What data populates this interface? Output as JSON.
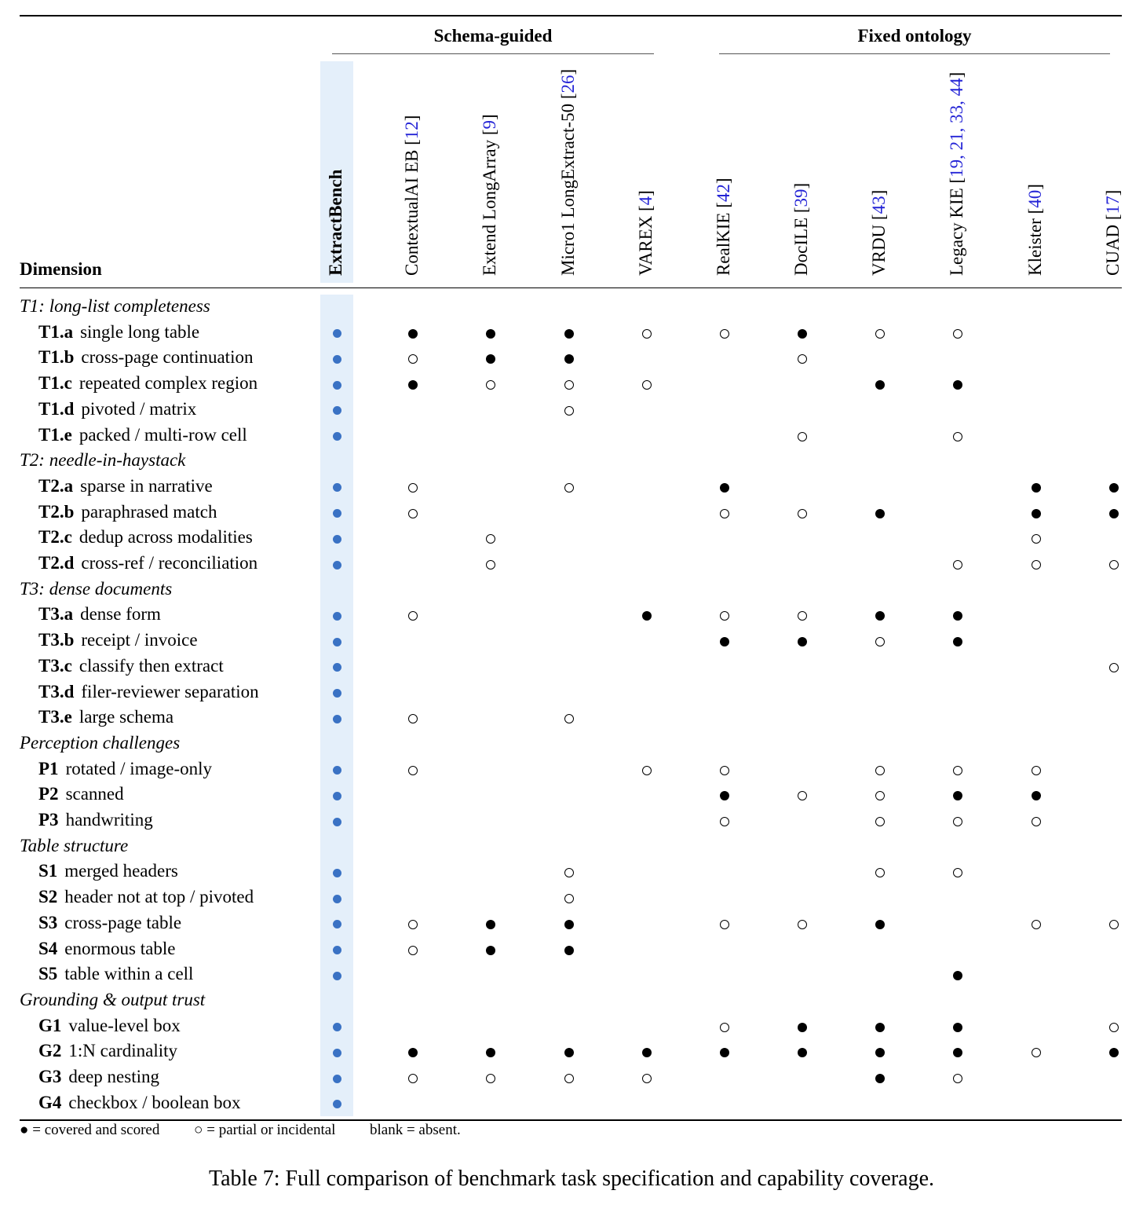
{
  "groups": [
    {
      "label": "Schema-guided"
    },
    {
      "label": "Fixed ontology"
    }
  ],
  "dimension_header": "Dimension",
  "columns": [
    {
      "name": "ExtractBench",
      "cite": ""
    },
    {
      "name": "ContextualAI EB [",
      "cite": "12",
      "suffix": "]"
    },
    {
      "name": "Extend LongArray [",
      "cite": "9",
      "suffix": "]"
    },
    {
      "name": "Micro1 LongExtract-50 [",
      "cite": "26",
      "suffix": "]"
    },
    {
      "name": "VAREX [",
      "cite": "4",
      "suffix": "]"
    },
    {
      "name": "RealKIE [",
      "cite": "42",
      "suffix": "]"
    },
    {
      "name": "DocILE [",
      "cite": "39",
      "suffix": "]"
    },
    {
      "name": "VRDU [",
      "cite": "43",
      "suffix": "]"
    },
    {
      "name": "Legacy KIE [",
      "cite": "19, 21, 33, 44",
      "suffix": "]"
    },
    {
      "name": "Kleister [",
      "cite": "40",
      "suffix": "]"
    },
    {
      "name": "CUAD [",
      "cite": "17",
      "suffix": "]"
    }
  ],
  "sections": [
    {
      "title": "T1: long-list completeness",
      "rows": [
        {
          "code": "T1.a",
          "label": "single long table",
          "marks": [
            "eb",
            "full",
            "full",
            "full",
            "partial",
            "partial",
            "full",
            "partial",
            "partial",
            "",
            ""
          ]
        },
        {
          "code": "T1.b",
          "label": "cross-page continuation",
          "marks": [
            "eb",
            "partial",
            "full",
            "full",
            "",
            "",
            "partial",
            "",
            "",
            "",
            ""
          ]
        },
        {
          "code": "T1.c",
          "label": "repeated complex region",
          "marks": [
            "eb",
            "full",
            "partial",
            "partial",
            "partial",
            "",
            "",
            "full",
            "full",
            "",
            ""
          ]
        },
        {
          "code": "T1.d",
          "label": "pivoted / matrix",
          "marks": [
            "eb",
            "",
            "",
            "partial",
            "",
            "",
            "",
            "",
            "",
            "",
            ""
          ]
        },
        {
          "code": "T1.e",
          "label": "packed / multi-row cell",
          "marks": [
            "eb",
            "",
            "",
            "",
            "",
            "",
            "partial",
            "",
            "partial",
            "",
            ""
          ]
        }
      ]
    },
    {
      "title": "T2: needle-in-haystack",
      "rows": [
        {
          "code": "T2.a",
          "label": "sparse in narrative",
          "marks": [
            "eb",
            "partial",
            "",
            "partial",
            "",
            "full",
            "",
            "",
            "",
            "full",
            "full"
          ]
        },
        {
          "code": "T2.b",
          "label": "paraphrased match",
          "marks": [
            "eb",
            "partial",
            "",
            "",
            "",
            "partial",
            "partial",
            "full",
            "",
            "full",
            "full"
          ]
        },
        {
          "code": "T2.c",
          "label": "dedup across modalities",
          "marks": [
            "eb",
            "",
            "partial",
            "",
            "",
            "",
            "",
            "",
            "",
            "partial",
            ""
          ]
        },
        {
          "code": "T2.d",
          "label": "cross-ref / reconciliation",
          "marks": [
            "eb",
            "",
            "partial",
            "",
            "",
            "",
            "",
            "",
            "partial",
            "partial",
            "partial"
          ]
        }
      ]
    },
    {
      "title": "T3: dense documents",
      "rows": [
        {
          "code": "T3.a",
          "label": "dense form",
          "marks": [
            "eb",
            "partial",
            "",
            "",
            "full",
            "partial",
            "partial",
            "full",
            "full",
            "",
            ""
          ]
        },
        {
          "code": "T3.b",
          "label": "receipt / invoice",
          "marks": [
            "eb",
            "",
            "",
            "",
            "",
            "full",
            "full",
            "partial",
            "full",
            "",
            ""
          ]
        },
        {
          "code": "T3.c",
          "label": "classify then extract",
          "marks": [
            "eb",
            "",
            "",
            "",
            "",
            "",
            "",
            "",
            "",
            "",
            "partial"
          ]
        },
        {
          "code": "T3.d",
          "label": "filer-reviewer separation",
          "marks": [
            "eb",
            "",
            "",
            "",
            "",
            "",
            "",
            "",
            "",
            "",
            ""
          ]
        },
        {
          "code": "T3.e",
          "label": "large schema",
          "marks": [
            "eb",
            "partial",
            "",
            "partial",
            "",
            "",
            "",
            "",
            "",
            "",
            ""
          ]
        }
      ]
    },
    {
      "title": "Perception challenges",
      "rows": [
        {
          "code": "P1",
          "label": "rotated / image-only",
          "marks": [
            "eb",
            "partial",
            "",
            "",
            "partial",
            "partial",
            "",
            "partial",
            "partial",
            "partial",
            ""
          ]
        },
        {
          "code": "P2",
          "label": "scanned",
          "marks": [
            "eb",
            "",
            "",
            "",
            "",
            "full",
            "partial",
            "partial",
            "full",
            "full",
            ""
          ]
        },
        {
          "code": "P3",
          "label": "handwriting",
          "marks": [
            "eb",
            "",
            "",
            "",
            "",
            "partial",
            "",
            "partial",
            "partial",
            "partial",
            ""
          ]
        }
      ]
    },
    {
      "title": "Table structure",
      "rows": [
        {
          "code": "S1",
          "label": "merged headers",
          "marks": [
            "eb",
            "",
            "",
            "partial",
            "",
            "",
            "",
            "partial",
            "partial",
            "",
            ""
          ]
        },
        {
          "code": "S2",
          "label": "header not at top / pivoted",
          "marks": [
            "eb",
            "",
            "",
            "partial",
            "",
            "",
            "",
            "",
            "",
            "",
            ""
          ]
        },
        {
          "code": "S3",
          "label": "cross-page table",
          "marks": [
            "eb",
            "partial",
            "full",
            "full",
            "",
            "partial",
            "partial",
            "full",
            "",
            "partial",
            "partial"
          ]
        },
        {
          "code": "S4",
          "label": "enormous table",
          "marks": [
            "eb",
            "partial",
            "full",
            "full",
            "",
            "",
            "",
            "",
            "",
            "",
            ""
          ]
        },
        {
          "code": "S5",
          "label": "table within a cell",
          "marks": [
            "eb",
            "",
            "",
            "",
            "",
            "",
            "",
            "",
            "full",
            "",
            ""
          ]
        }
      ]
    },
    {
      "title": "Grounding & output trust",
      "rows": [
        {
          "code": "G1",
          "label": "value-level box",
          "marks": [
            "eb",
            "",
            "",
            "",
            "",
            "partial",
            "full",
            "full",
            "full",
            "",
            "partial"
          ]
        },
        {
          "code": "G2",
          "label": "1:N cardinality",
          "marks": [
            "eb",
            "full",
            "full",
            "full",
            "full",
            "full",
            "full",
            "full",
            "full",
            "partial",
            "full"
          ]
        },
        {
          "code": "G3",
          "label": "deep nesting",
          "marks": [
            "eb",
            "partial",
            "partial",
            "partial",
            "partial",
            "",
            "",
            "full",
            "partial",
            "",
            ""
          ]
        },
        {
          "code": "G4",
          "label": "checkbox / boolean box",
          "marks": [
            "eb",
            "",
            "",
            "",
            "",
            "",
            "",
            "",
            "",
            "",
            ""
          ]
        }
      ]
    }
  ],
  "legend": {
    "full": "● = covered and scored",
    "partial": "○ = partial or incidental",
    "blank": "blank = absent."
  },
  "caption": "Table 7: Full comparison of benchmark task specification and capability coverage.",
  "colors": {
    "extractbench_band": "#e4effa",
    "extractbench_dot": "#3a72c4",
    "citation": "#2424d6"
  }
}
